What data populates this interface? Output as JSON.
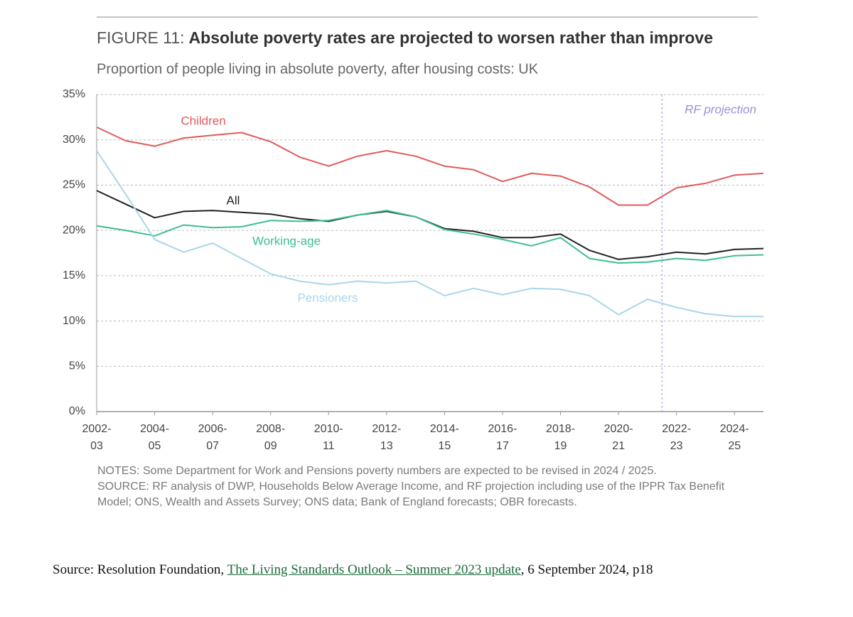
{
  "chart_data": {
    "type": "line",
    "title_label": "FIGURE 11:",
    "title": "Absolute poverty rates are projected to worsen rather than improve",
    "subtitle": "Proportion of people living in absolute poverty, after housing costs: UK",
    "x": [
      2002,
      2003,
      2004,
      2005,
      2006,
      2007,
      2008,
      2009,
      2010,
      2011,
      2012,
      2013,
      2014,
      2015,
      2016,
      2017,
      2018,
      2019,
      2020,
      2021,
      2022,
      2023,
      2024,
      2025
    ],
    "xlim": [
      2002,
      2025
    ],
    "xticks": [
      {
        "value": 2002,
        "label": [
          "2002-",
          "03"
        ]
      },
      {
        "value": 2004,
        "label": [
          "2004-",
          "05"
        ]
      },
      {
        "value": 2006,
        "label": [
          "2006-",
          "07"
        ]
      },
      {
        "value": 2008,
        "label": [
          "2008-",
          "09"
        ]
      },
      {
        "value": 2010,
        "label": [
          "2010-",
          "11"
        ]
      },
      {
        "value": 2012,
        "label": [
          "2012-",
          "13"
        ]
      },
      {
        "value": 2014,
        "label": [
          "2014-",
          "15"
        ]
      },
      {
        "value": 2016,
        "label": [
          "2016-",
          "17"
        ]
      },
      {
        "value": 2018,
        "label": [
          "2018-",
          "19"
        ]
      },
      {
        "value": 2020,
        "label": [
          "2020-",
          "21"
        ]
      },
      {
        "value": 2022,
        "label": [
          "2022-",
          "23"
        ]
      },
      {
        "value": 2024,
        "label": [
          "2024-",
          "25"
        ]
      }
    ],
    "ylim": [
      0,
      35
    ],
    "yticks": [
      {
        "value": 0,
        "label": "0%"
      },
      {
        "value": 5,
        "label": "5%"
      },
      {
        "value": 10,
        "label": "10%"
      },
      {
        "value": 15,
        "label": "15%"
      },
      {
        "value": 20,
        "label": "20%"
      },
      {
        "value": 25,
        "label": "25%"
      },
      {
        "value": 30,
        "label": "30%"
      },
      {
        "value": 35,
        "label": "35%"
      }
    ],
    "grid": true,
    "series": [
      {
        "name": "Children",
        "color": "#e05a5a",
        "values": [
          31.4,
          29.9,
          29.3,
          30.2,
          30.5,
          30.8,
          29.8,
          28.1,
          27.1,
          28.2,
          28.8,
          28.2,
          27.1,
          26.7,
          25.4,
          26.3,
          26.0,
          24.8,
          22.8,
          22.8,
          24.7,
          25.2,
          26.1,
          26.3
        ]
      },
      {
        "name": "All",
        "color": "#222222",
        "values": [
          24.4,
          22.9,
          21.4,
          22.1,
          22.2,
          22.0,
          21.8,
          21.3,
          21.0,
          21.7,
          22.1,
          21.5,
          20.2,
          19.9,
          19.2,
          19.2,
          19.6,
          17.8,
          16.8,
          17.1,
          17.6,
          17.4,
          17.9,
          18.0
        ]
      },
      {
        "name": "Working-age",
        "color": "#3dbf8f",
        "values": [
          20.5,
          20.0,
          19.4,
          20.6,
          20.3,
          20.4,
          21.1,
          21.0,
          21.1,
          21.7,
          22.2,
          21.5,
          20.1,
          19.6,
          19.0,
          18.3,
          19.2,
          16.9,
          16.4,
          16.5,
          16.9,
          16.7,
          17.2,
          17.3
        ]
      },
      {
        "name": "Pensioners",
        "color": "#a9d6ea",
        "values": [
          28.8,
          24.0,
          19.0,
          17.6,
          18.6,
          16.9,
          15.2,
          14.4,
          14.0,
          14.4,
          14.2,
          14.4,
          12.8,
          13.6,
          12.9,
          13.6,
          13.5,
          12.8,
          10.7,
          12.4,
          11.5,
          10.8,
          10.5,
          10.5
        ]
      }
    ],
    "projection": {
      "label": "RF projection",
      "x": 2021.5,
      "color": "#9b8fd6"
    },
    "notes": "NOTES: Some Department for Work and Pensions poverty numbers are expected to be revised in 2024 / 2025.",
    "source_note": "SOURCE: RF analysis of DWP, Households Below Average Income, and RF projection including use of the IPPR Tax Benefit Model; ONS, Wealth and Assets Survey; ONS data; Bank of England forecasts; OBR forecasts."
  },
  "citation": {
    "prefix": "Source: Resolution Foundation, ",
    "link": "The Living Standards Outlook – Summer 2023 update",
    "suffix": ", 6 September 2024, p18"
  }
}
